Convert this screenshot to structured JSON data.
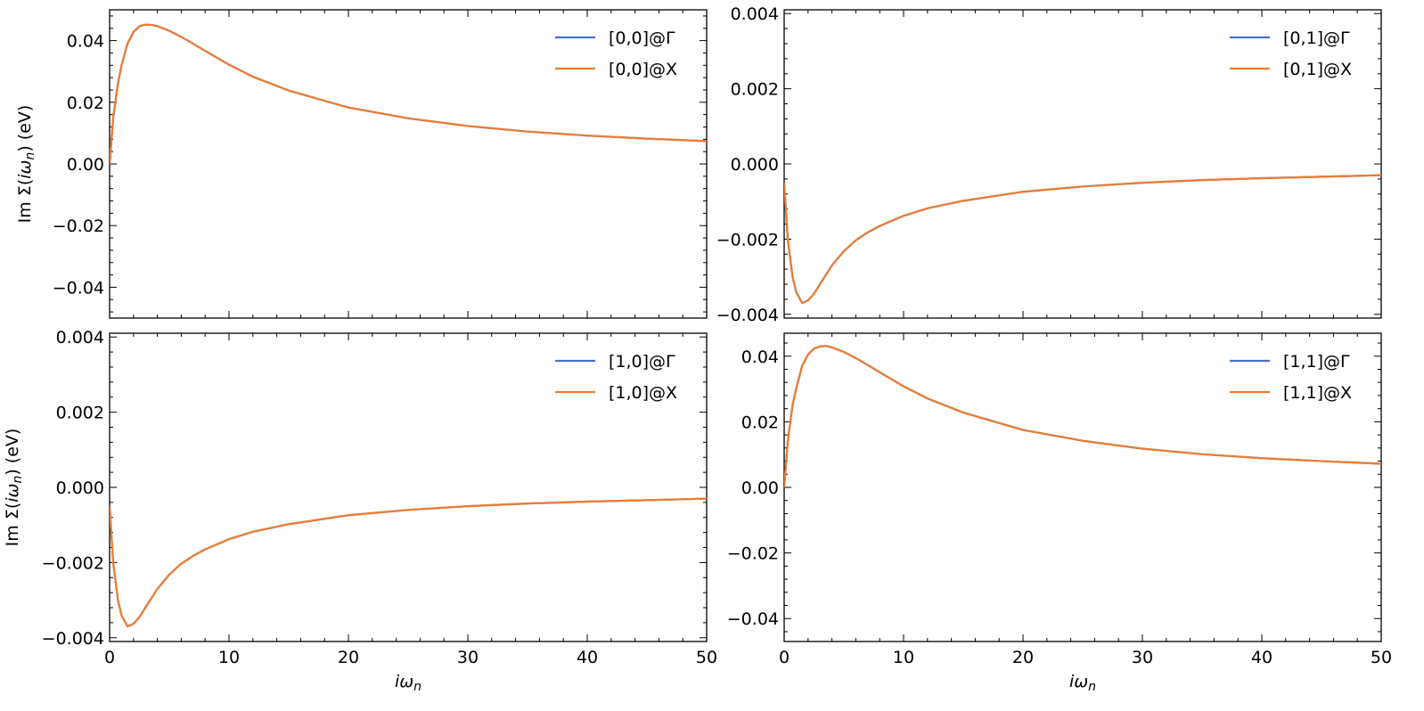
{
  "chart_data": [
    {
      "type": "line",
      "id": "p00",
      "xlabel": "",
      "ylabel_prefix": "Im Σ(",
      "ylabel_var": "iω",
      "ylabel_sub": "n",
      "ylabel_suffix": ") (eV)",
      "xlim": [
        0,
        50
      ],
      "ylim": [
        -0.05,
        0.05
      ],
      "yticks": [
        -0.04,
        -0.02,
        0.0,
        0.02,
        0.04
      ],
      "ytick_labels": [
        "−0.04",
        "−0.02",
        "0.00",
        "0.02",
        "0.04"
      ],
      "xticks": [
        0,
        10,
        20,
        30,
        40,
        50
      ],
      "xtick_labels": [],
      "legend_position": "top-right",
      "series": [
        {
          "name": "[0,0]@Γ",
          "color": "#4472c4"
        },
        {
          "name": "[0,0]@X",
          "color": "#ed7d31"
        }
      ],
      "x": [
        0,
        0.3,
        0.7,
        1.0,
        1.5,
        2.0,
        2.5,
        3.0,
        3.5,
        4.0,
        5.0,
        6.0,
        7.0,
        8.0,
        10.0,
        12.0,
        15.0,
        20.0,
        25.0,
        30.0,
        35.0,
        40.0,
        45.0,
        50.0
      ],
      "y": [
        0.0,
        0.015,
        0.026,
        0.032,
        0.039,
        0.0428,
        0.0447,
        0.0452,
        0.0451,
        0.0447,
        0.0432,
        0.0412,
        0.039,
        0.0367,
        0.0322,
        0.0283,
        0.0238,
        0.0183,
        0.0148,
        0.0123,
        0.0105,
        0.0092,
        0.0082,
        0.0074
      ]
    },
    {
      "type": "line",
      "id": "p01",
      "xlabel": "",
      "ylabel_prefix": "",
      "ylabel_var": "",
      "ylabel_sub": "",
      "ylabel_suffix": "",
      "xlim": [
        0,
        50
      ],
      "ylim": [
        -0.0041,
        0.0041
      ],
      "yticks": [
        -0.004,
        -0.002,
        0.0,
        0.002,
        0.004
      ],
      "ytick_labels": [
        "−0.004",
        "−0.002",
        "0.000",
        "0.002",
        "0.004"
      ],
      "xticks": [
        0,
        10,
        20,
        30,
        40,
        50
      ],
      "xtick_labels": [],
      "legend_position": "top-right",
      "series": [
        {
          "name": "[0,1]@Γ",
          "color": "#4472c4"
        },
        {
          "name": "[0,1]@X",
          "color": "#ed7d31"
        }
      ],
      "x": [
        0,
        0.3,
        0.7,
        1.0,
        1.5,
        2.0,
        2.5,
        3.0,
        4.0,
        5.0,
        6.0,
        7.0,
        8.0,
        10.0,
        12.0,
        15.0,
        20.0,
        25.0,
        30.0,
        35.0,
        40.0,
        45.0,
        50.0
      ],
      "y": [
        -0.0005,
        -0.002,
        -0.003,
        -0.0034,
        -0.0037,
        -0.00363,
        -0.00345,
        -0.0032,
        -0.0027,
        -0.00232,
        -0.00203,
        -0.00182,
        -0.00165,
        -0.00138,
        -0.00118,
        -0.00098,
        -0.00074,
        -0.0006,
        -0.0005,
        -0.00043,
        -0.00038,
        -0.00034,
        -0.0003
      ]
    },
    {
      "type": "line",
      "id": "p10",
      "xlabel_var": "iω",
      "xlabel_sub": "n",
      "ylabel_prefix": "Im Σ(",
      "ylabel_var": "iω",
      "ylabel_sub": "n",
      "ylabel_suffix": ") (eV)",
      "xlim": [
        0,
        50
      ],
      "ylim": [
        -0.0041,
        0.0041
      ],
      "yticks": [
        -0.004,
        -0.002,
        0.0,
        0.002,
        0.004
      ],
      "ytick_labels": [
        "−0.004",
        "−0.002",
        "0.000",
        "0.002",
        "0.004"
      ],
      "xticks": [
        0,
        10,
        20,
        30,
        40,
        50
      ],
      "xtick_labels": [
        "0",
        "10",
        "20",
        "30",
        "40",
        "50"
      ],
      "legend_position": "top-right",
      "series": [
        {
          "name": "[1,0]@Γ",
          "color": "#4472c4"
        },
        {
          "name": "[1,0]@X",
          "color": "#ed7d31"
        }
      ],
      "x": [
        0,
        0.3,
        0.7,
        1.0,
        1.5,
        2.0,
        2.5,
        3.0,
        4.0,
        5.0,
        6.0,
        7.0,
        8.0,
        10.0,
        12.0,
        15.0,
        20.0,
        25.0,
        30.0,
        35.0,
        40.0,
        45.0,
        50.0
      ],
      "y": [
        -0.0005,
        -0.002,
        -0.003,
        -0.0034,
        -0.0037,
        -0.00363,
        -0.00345,
        -0.0032,
        -0.0027,
        -0.00232,
        -0.00203,
        -0.00182,
        -0.00165,
        -0.00138,
        -0.00118,
        -0.00098,
        -0.00074,
        -0.0006,
        -0.0005,
        -0.00043,
        -0.00038,
        -0.00034,
        -0.0003
      ]
    },
    {
      "type": "line",
      "id": "p11",
      "xlabel_var": "iω",
      "xlabel_sub": "n",
      "ylabel_prefix": "",
      "ylabel_var": "",
      "ylabel_sub": "",
      "ylabel_suffix": "",
      "xlim": [
        0,
        50
      ],
      "ylim": [
        -0.047,
        0.047
      ],
      "yticks": [
        -0.04,
        -0.02,
        0.0,
        0.02,
        0.04
      ],
      "ytick_labels": [
        "−0.04",
        "−0.02",
        "0.00",
        "0.02",
        "0.04"
      ],
      "xticks": [
        0,
        10,
        20,
        30,
        40,
        50
      ],
      "xtick_labels": [
        "0",
        "10",
        "20",
        "30",
        "40",
        "50"
      ],
      "legend_position": "top-right",
      "series": [
        {
          "name": "[1,1]@Γ",
          "color": "#4472c4"
        },
        {
          "name": "[1,1]@X",
          "color": "#ed7d31"
        }
      ],
      "x": [
        0,
        0.3,
        0.7,
        1.0,
        1.5,
        2.0,
        2.5,
        3.0,
        3.5,
        4.0,
        5.0,
        6.0,
        7.0,
        8.0,
        10.0,
        12.0,
        15.0,
        20.0,
        25.0,
        30.0,
        35.0,
        40.0,
        45.0,
        50.0
      ],
      "y": [
        0.0,
        0.014,
        0.025,
        0.03,
        0.037,
        0.0405,
        0.0423,
        0.043,
        0.0431,
        0.0427,
        0.0413,
        0.0394,
        0.0373,
        0.0351,
        0.0308,
        0.0271,
        0.0228,
        0.0175,
        0.0142,
        0.0118,
        0.0101,
        0.0089,
        0.008,
        0.0072
      ]
    }
  ]
}
